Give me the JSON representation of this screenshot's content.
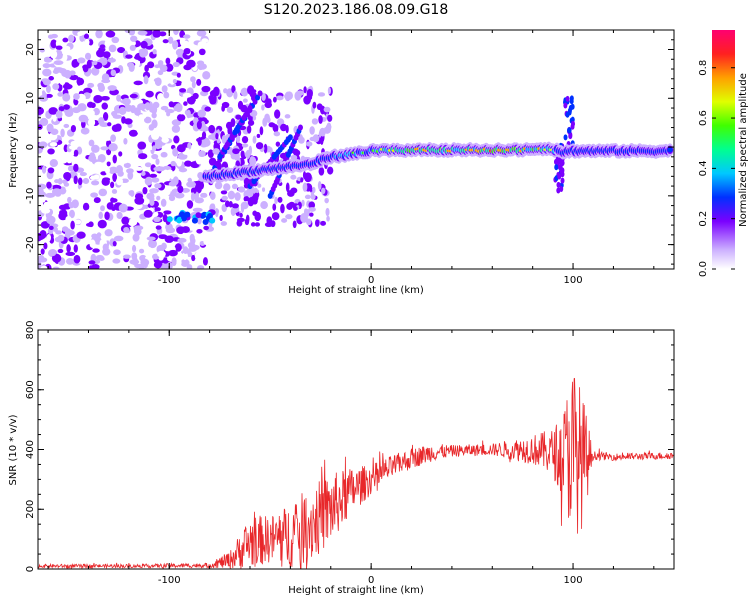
{
  "title": "S120.2023.186.08.09.G18",
  "chart_data": [
    {
      "type": "heatmap",
      "name": "spectrogram",
      "xlabel": "Height of straight line (km)",
      "ylabel": "Frequency (Hz)",
      "xlim": [
        -165,
        150
      ],
      "ylim": [
        -25,
        24
      ],
      "xticks": [
        -100,
        0,
        100
      ],
      "xtick_labels": [
        "-100",
        "0",
        "100"
      ],
      "yticks": [
        -20,
        -10,
        0,
        10,
        20
      ],
      "ytick_labels": [
        "-20",
        "-10",
        "0",
        "10",
        "20"
      ],
      "colorbar": {
        "label": "Normalized spectral amplitude",
        "range": [
          0,
          0.95
        ],
        "ticks": [
          0.0,
          0.2,
          0.4,
          0.6,
          0.8
        ],
        "tick_labels": [
          "0.0",
          "0.2",
          "0.4",
          "0.6",
          "0.8"
        ]
      },
      "ridge": {
        "x": [
          -80,
          -60,
          -40,
          -30,
          -20,
          -10,
          0,
          20,
          40,
          60,
          80,
          90,
          95,
          100,
          120,
          148
        ],
        "freq": [
          -6,
          -5,
          -4,
          -3.5,
          -2,
          -1.5,
          -0.8,
          -0.6,
          -0.6,
          -0.6,
          -0.6,
          -0.5,
          -1,
          -0.8,
          -0.8,
          -0.8
        ],
        "amplitude": [
          0.3,
          0.35,
          0.3,
          0.4,
          0.5,
          0.55,
          0.6,
          0.8,
          0.75,
          0.85,
          0.8,
          0.7,
          0.35,
          0.4,
          0.45,
          0.45
        ]
      }
    },
    {
      "type": "line",
      "name": "snr",
      "xlabel": "Height of straight line (km)",
      "ylabel": "SNR (10 * v/v)",
      "xlim": [
        -165,
        150
      ],
      "ylim": [
        0,
        800
      ],
      "xticks": [
        -100,
        0,
        100
      ],
      "xtick_labels": [
        "-100",
        "0",
        "100"
      ],
      "yticks": [
        0,
        200,
        400,
        600,
        800
      ],
      "ytick_labels": [
        "0",
        "200",
        "400",
        "600",
        "800"
      ],
      "color": "#e8272a",
      "envelope": {
        "x": [
          -165,
          -120,
          -80,
          -70,
          -60,
          -50,
          -40,
          -30,
          -20,
          -10,
          0,
          10,
          20,
          30,
          40,
          60,
          80,
          90,
          95,
          100,
          105,
          110,
          120,
          150
        ],
        "mean": [
          10,
          10,
          12,
          30,
          90,
          100,
          110,
          150,
          200,
          260,
          300,
          340,
          370,
          390,
          395,
          400,
          400,
          390,
          380,
          400,
          360,
          380,
          375,
          380
        ],
        "spread": [
          6,
          6,
          8,
          30,
          90,
          80,
          110,
          130,
          120,
          80,
          50,
          40,
          35,
          30,
          20,
          20,
          50,
          80,
          150,
          300,
          220,
          15,
          12,
          12
        ]
      }
    }
  ]
}
